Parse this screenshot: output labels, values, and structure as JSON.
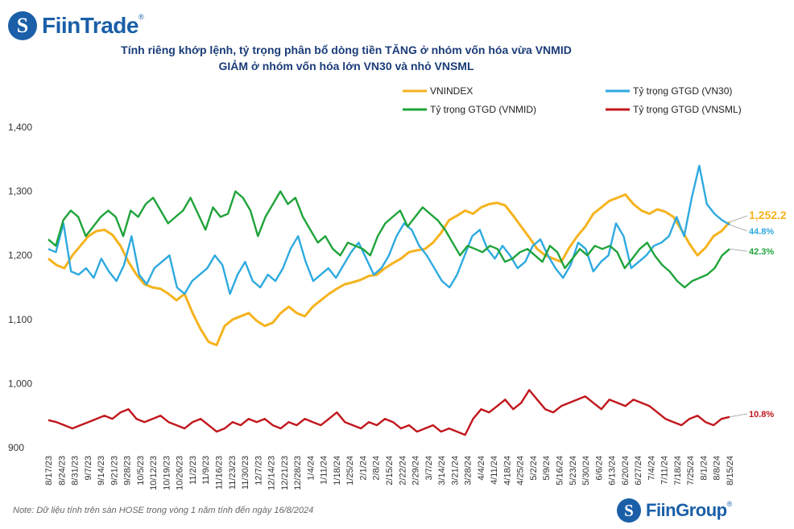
{
  "brand": {
    "logo_glyph": "S",
    "name": "FiinTrade",
    "footer_glyph": "S",
    "footer_name": "FiinGroup",
    "color": "#1a5fa8"
  },
  "title_line1": "Tính riêng khớp lệnh, tỷ trọng phân bổ dòng tiền TĂNG ở nhóm vốn hóa vừa VNMID",
  "title_line2": "GIẢM ở nhóm vốn hóa lớn VN30 và nhỏ VNSML",
  "note": "Note: Dữ liệu tính trên sàn HOSE trong vòng 1 năm tính đến ngày 16/8/2024",
  "chart_data": {
    "type": "line",
    "yticks": [
      "1,400",
      "1,300",
      "1,200",
      "1,100",
      "1,000",
      "900"
    ],
    "ylim": [
      900,
      1400
    ],
    "x_labels": [
      "8/17/23",
      "8/24/23",
      "8/31/23",
      "9/7/23",
      "9/14/23",
      "9/21/23",
      "9/28/23",
      "10/5/23",
      "10/12/23",
      "10/19/23",
      "10/26/23",
      "11/2/23",
      "11/9/23",
      "11/16/23",
      "11/23/23",
      "11/30/23",
      "12/7/23",
      "12/14/23",
      "12/21/23",
      "12/28/23",
      "1/4/24",
      "1/11/24",
      "1/18/24",
      "1/25/24",
      "2/1/24",
      "2/8/24",
      "2/15/24",
      "2/22/24",
      "2/29/24",
      "3/7/24",
      "3/14/24",
      "3/21/24",
      "3/28/24",
      "4/4/24",
      "4/11/24",
      "4/18/24",
      "4/25/24",
      "5/2/24",
      "5/9/24",
      "5/16/24",
      "5/23/24",
      "5/30/24",
      "6/6/24",
      "6/13/24",
      "6/20/24",
      "6/27/24",
      "7/4/24",
      "7/11/24",
      "7/18/24",
      "7/25/24",
      "8/1/24",
      "8/8/24",
      "8/15/24"
    ],
    "series": [
      {
        "name": "VNINDEX",
        "color": "#f5b31e",
        "end_label": "1,252.2",
        "values": [
          1195,
          1185,
          1180,
          1200,
          1215,
          1230,
          1238,
          1240,
          1232,
          1215,
          1190,
          1170,
          1155,
          1150,
          1148,
          1140,
          1130,
          1140,
          1110,
          1085,
          1065,
          1060,
          1090,
          1100,
          1105,
          1110,
          1098,
          1090,
          1095,
          1110,
          1120,
          1110,
          1105,
          1120,
          1130,
          1140,
          1148,
          1155,
          1158,
          1162,
          1168,
          1170,
          1180,
          1188,
          1195,
          1205,
          1208,
          1210,
          1220,
          1235,
          1255,
          1262,
          1270,
          1265,
          1275,
          1280,
          1282,
          1278,
          1262,
          1245,
          1228,
          1210,
          1200,
          1195,
          1190,
          1212,
          1230,
          1245,
          1265,
          1275,
          1285,
          1290,
          1295,
          1280,
          1270,
          1265,
          1272,
          1268,
          1260,
          1240,
          1218,
          1200,
          1212,
          1230,
          1238,
          1252
        ]
      },
      {
        "name": "Tỷ trọng GTGD (VN30)",
        "color": "#2eaadf",
        "end_label": "44.8%",
        "values": [
          1210,
          1205,
          1250,
          1175,
          1170,
          1180,
          1165,
          1195,
          1175,
          1160,
          1185,
          1230,
          1170,
          1155,
          1180,
          1190,
          1200,
          1150,
          1140,
          1160,
          1170,
          1180,
          1200,
          1185,
          1140,
          1170,
          1190,
          1160,
          1150,
          1170,
          1160,
          1180,
          1210,
          1230,
          1190,
          1160,
          1170,
          1180,
          1165,
          1185,
          1205,
          1220,
          1195,
          1170,
          1180,
          1200,
          1230,
          1250,
          1240,
          1215,
          1200,
          1180,
          1160,
          1150,
          1170,
          1200,
          1230,
          1240,
          1210,
          1195,
          1215,
          1200,
          1180,
          1190,
          1215,
          1225,
          1200,
          1180,
          1165,
          1185,
          1220,
          1210,
          1175,
          1190,
          1200,
          1250,
          1230,
          1180,
          1190,
          1200,
          1215,
          1220,
          1230,
          1260,
          1230,
          1290,
          1340,
          1280,
          1265,
          1255,
          1248
        ]
      },
      {
        "name": "Tỷ trọng GTGD (VNMID)",
        "color": "#1fa33a",
        "end_label": "42.3%",
        "values": [
          1225,
          1215,
          1255,
          1270,
          1260,
          1230,
          1245,
          1260,
          1270,
          1260,
          1230,
          1270,
          1260,
          1280,
          1290,
          1270,
          1250,
          1260,
          1270,
          1290,
          1265,
          1240,
          1275,
          1260,
          1265,
          1300,
          1290,
          1270,
          1230,
          1260,
          1280,
          1300,
          1280,
          1290,
          1260,
          1240,
          1220,
          1230,
          1210,
          1200,
          1220,
          1215,
          1210,
          1200,
          1230,
          1250,
          1260,
          1270,
          1245,
          1260,
          1275,
          1265,
          1255,
          1240,
          1220,
          1200,
          1215,
          1210,
          1205,
          1215,
          1210,
          1190,
          1195,
          1205,
          1210,
          1200,
          1190,
          1215,
          1205,
          1180,
          1195,
          1210,
          1200,
          1215,
          1210,
          1215,
          1205,
          1180,
          1195,
          1210,
          1220,
          1200,
          1185,
          1175,
          1160,
          1150,
          1160,
          1165,
          1170,
          1180,
          1200,
          1210
        ]
      },
      {
        "name": "Tỷ trọng GTGD (VNSML)",
        "color": "#c0171d",
        "end_label": "10.8%",
        "values": [
          943,
          940,
          935,
          930,
          935,
          940,
          945,
          950,
          945,
          955,
          960,
          945,
          940,
          945,
          950,
          940,
          935,
          930,
          940,
          945,
          935,
          925,
          930,
          940,
          935,
          945,
          940,
          945,
          935,
          930,
          940,
          935,
          945,
          940,
          935,
          945,
          955,
          940,
          935,
          930,
          940,
          935,
          945,
          940,
          930,
          935,
          925,
          930,
          935,
          925,
          930,
          925,
          920,
          945,
          960,
          955,
          965,
          975,
          960,
          970,
          990,
          975,
          960,
          955,
          965,
          970,
          975,
          980,
          970,
          960,
          975,
          970,
          965,
          975,
          970,
          965,
          955,
          945,
          940,
          935,
          945,
          950,
          940,
          935,
          945,
          948
        ]
      }
    ]
  }
}
